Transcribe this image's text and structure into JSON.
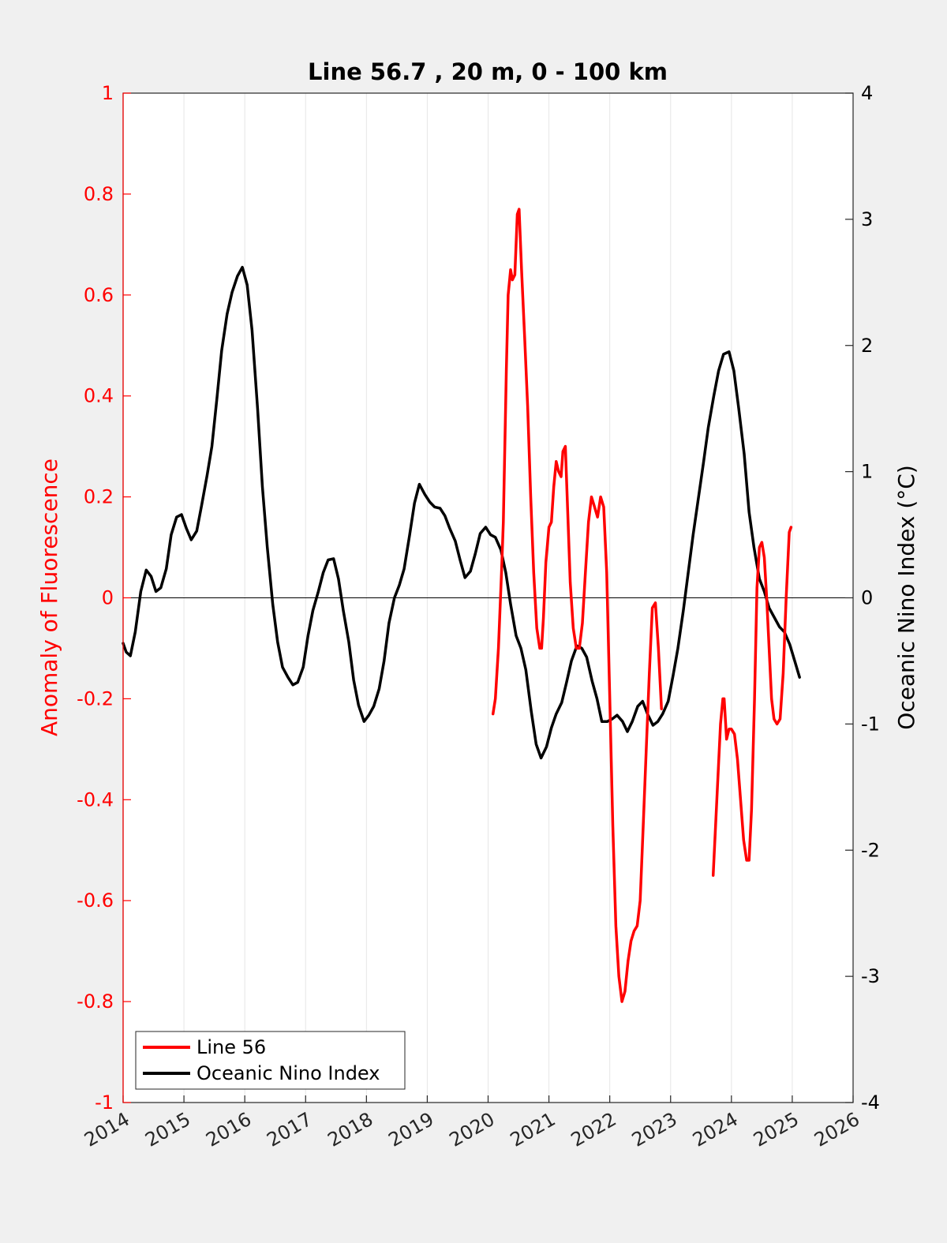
{
  "chart_data": {
    "type": "line",
    "title": "Line 56.7 , 20 m, 0 - 100 km",
    "ylabel_left": "Anomaly of Fluorescence",
    "ylabel_right": "Oceanic Nino Index (°C)",
    "xlim": [
      2014,
      2026
    ],
    "ylim_left": [
      -1,
      1
    ],
    "ylim_right": [
      -4,
      4
    ],
    "x_ticks": [
      "2014",
      "2015",
      "2016",
      "2017",
      "2018",
      "2019",
      "2020",
      "2021",
      "2022",
      "2023",
      "2024",
      "2025",
      "2026"
    ],
    "y_left_ticks": [
      "-1",
      "-0.8",
      "-0.6",
      "-0.4",
      "-0.2",
      "0",
      "0.2",
      "0.4",
      "0.6",
      "0.8",
      "1"
    ],
    "y_right_ticks": [
      "-4",
      "-3",
      "-2",
      "-1",
      "0",
      "1",
      "2",
      "3",
      "4"
    ],
    "grid": "vertical",
    "legend_position": "bottom-left",
    "colors": {
      "line56": "#ff0000",
      "oni": "#000000",
      "left_axis": "#ff0000"
    },
    "series": [
      {
        "name": "Line 56",
        "axis": "left",
        "segments": [
          [
            [
              2020.08,
              -0.23
            ],
            [
              2020.12,
              -0.2
            ],
            [
              2020.17,
              -0.1
            ],
            [
              2020.22,
              0.05
            ],
            [
              2020.25,
              0.15
            ],
            [
              2020.3,
              0.45
            ],
            [
              2020.33,
              0.6
            ],
            [
              2020.37,
              0.65
            ],
            [
              2020.4,
              0.63
            ],
            [
              2020.44,
              0.64
            ],
            [
              2020.48,
              0.76
            ],
            [
              2020.51,
              0.77
            ],
            [
              2020.55,
              0.65
            ],
            [
              2020.6,
              0.52
            ],
            [
              2020.65,
              0.38
            ],
            [
              2020.7,
              0.2
            ],
            [
              2020.75,
              0.05
            ],
            [
              2020.8,
              -0.06
            ],
            [
              2020.85,
              -0.1
            ],
            [
              2020.88,
              -0.1
            ],
            [
              2020.91,
              -0.04
            ],
            [
              2020.95,
              0.07
            ],
            [
              2021.0,
              0.14
            ],
            [
              2021.04,
              0.15
            ],
            [
              2021.08,
              0.22
            ],
            [
              2021.12,
              0.27
            ],
            [
              2021.16,
              0.25
            ],
            [
              2021.2,
              0.24
            ],
            [
              2021.23,
              0.29
            ],
            [
              2021.27,
              0.3
            ],
            [
              2021.3,
              0.2
            ],
            [
              2021.35,
              0.03
            ],
            [
              2021.4,
              -0.06
            ],
            [
              2021.45,
              -0.1
            ],
            [
              2021.5,
              -0.1
            ],
            [
              2021.55,
              -0.05
            ],
            [
              2021.6,
              0.05
            ],
            [
              2021.65,
              0.15
            ],
            [
              2021.7,
              0.2
            ],
            [
              2021.75,
              0.18
            ],
            [
              2021.8,
              0.16
            ],
            [
              2021.85,
              0.2
            ],
            [
              2021.9,
              0.18
            ],
            [
              2021.95,
              0.05
            ],
            [
              2022.0,
              -0.2
            ],
            [
              2022.05,
              -0.45
            ],
            [
              2022.1,
              -0.65
            ],
            [
              2022.15,
              -0.75
            ],
            [
              2022.2,
              -0.8
            ],
            [
              2022.25,
              -0.78
            ],
            [
              2022.3,
              -0.72
            ],
            [
              2022.35,
              -0.68
            ],
            [
              2022.4,
              -0.66
            ],
            [
              2022.45,
              -0.65
            ],
            [
              2022.5,
              -0.6
            ],
            [
              2022.55,
              -0.45
            ],
            [
              2022.6,
              -0.3
            ],
            [
              2022.65,
              -0.15
            ],
            [
              2022.7,
              -0.02
            ],
            [
              2022.75,
              -0.01
            ],
            [
              2022.8,
              -0.1
            ],
            [
              2022.85,
              -0.22
            ]
          ],
          [
            [
              2023.7,
              -0.55
            ],
            [
              2023.74,
              -0.45
            ],
            [
              2023.78,
              -0.35
            ],
            [
              2023.82,
              -0.25
            ],
            [
              2023.86,
              -0.2
            ],
            [
              2023.88,
              -0.2
            ],
            [
              2023.92,
              -0.28
            ],
            [
              2023.96,
              -0.26
            ],
            [
              2024.0,
              -0.26
            ],
            [
              2024.05,
              -0.27
            ],
            [
              2024.1,
              -0.32
            ],
            [
              2024.15,
              -0.4
            ],
            [
              2024.2,
              -0.48
            ],
            [
              2024.25,
              -0.52
            ],
            [
              2024.29,
              -0.52
            ],
            [
              2024.33,
              -0.42
            ],
            [
              2024.38,
              -0.2
            ],
            [
              2024.42,
              0.02
            ],
            [
              2024.46,
              0.1
            ],
            [
              2024.5,
              0.11
            ],
            [
              2024.54,
              0.08
            ],
            [
              2024.58,
              0.0
            ],
            [
              2024.62,
              -0.1
            ],
            [
              2024.66,
              -0.2
            ],
            [
              2024.7,
              -0.24
            ],
            [
              2024.75,
              -0.25
            ],
            [
              2024.8,
              -0.24
            ],
            [
              2024.85,
              -0.15
            ],
            [
              2024.9,
              0.0
            ],
            [
              2024.95,
              0.13
            ],
            [
              2024.98,
              0.14
            ]
          ]
        ]
      },
      {
        "name": "Oceanic Nino Index",
        "axis": "right",
        "values": [
          [
            2014.0,
            -0.36
          ],
          [
            2014.05,
            -0.43
          ],
          [
            2014.12,
            -0.46
          ],
          [
            2014.2,
            -0.27
          ],
          [
            2014.29,
            0.05
          ],
          [
            2014.38,
            0.22
          ],
          [
            2014.46,
            0.17
          ],
          [
            2014.54,
            0.05
          ],
          [
            2014.62,
            0.08
          ],
          [
            2014.71,
            0.23
          ],
          [
            2014.79,
            0.5
          ],
          [
            2014.88,
            0.64
          ],
          [
            2014.96,
            0.66
          ],
          [
            2015.04,
            0.55
          ],
          [
            2015.12,
            0.46
          ],
          [
            2015.21,
            0.53
          ],
          [
            2015.29,
            0.73
          ],
          [
            2015.38,
            0.97
          ],
          [
            2015.46,
            1.2
          ],
          [
            2015.54,
            1.57
          ],
          [
            2015.62,
            1.96
          ],
          [
            2015.71,
            2.25
          ],
          [
            2015.79,
            2.42
          ],
          [
            2015.88,
            2.55
          ],
          [
            2015.96,
            2.62
          ],
          [
            2016.04,
            2.48
          ],
          [
            2016.12,
            2.12
          ],
          [
            2016.21,
            1.5
          ],
          [
            2016.29,
            0.88
          ],
          [
            2016.37,
            0.4
          ],
          [
            2016.46,
            -0.05
          ],
          [
            2016.54,
            -0.35
          ],
          [
            2016.62,
            -0.55
          ],
          [
            2016.71,
            -0.63
          ],
          [
            2016.79,
            -0.69
          ],
          [
            2016.87,
            -0.67
          ],
          [
            2016.96,
            -0.55
          ],
          [
            2017.04,
            -0.3
          ],
          [
            2017.12,
            -0.1
          ],
          [
            2017.21,
            0.05
          ],
          [
            2017.29,
            0.2
          ],
          [
            2017.37,
            0.3
          ],
          [
            2017.46,
            0.31
          ],
          [
            2017.54,
            0.15
          ],
          [
            2017.62,
            -0.1
          ],
          [
            2017.71,
            -0.35
          ],
          [
            2017.79,
            -0.65
          ],
          [
            2017.87,
            -0.85
          ],
          [
            2017.96,
            -0.98
          ],
          [
            2018.04,
            -0.93
          ],
          [
            2018.12,
            -0.86
          ],
          [
            2018.21,
            -0.72
          ],
          [
            2018.29,
            -0.5
          ],
          [
            2018.37,
            -0.2
          ],
          [
            2018.46,
            0.0
          ],
          [
            2018.54,
            0.1
          ],
          [
            2018.62,
            0.23
          ],
          [
            2018.71,
            0.5
          ],
          [
            2018.79,
            0.75
          ],
          [
            2018.87,
            0.9
          ],
          [
            2018.96,
            0.82
          ],
          [
            2019.04,
            0.76
          ],
          [
            2019.12,
            0.72
          ],
          [
            2019.21,
            0.71
          ],
          [
            2019.29,
            0.65
          ],
          [
            2019.37,
            0.55
          ],
          [
            2019.46,
            0.45
          ],
          [
            2019.54,
            0.3
          ],
          [
            2019.62,
            0.16
          ],
          [
            2019.71,
            0.21
          ],
          [
            2019.79,
            0.35
          ],
          [
            2019.87,
            0.51
          ],
          [
            2019.96,
            0.56
          ],
          [
            2020.04,
            0.5
          ],
          [
            2020.12,
            0.48
          ],
          [
            2020.21,
            0.38
          ],
          [
            2020.29,
            0.2
          ],
          [
            2020.37,
            -0.05
          ],
          [
            2020.46,
            -0.3
          ],
          [
            2020.54,
            -0.4
          ],
          [
            2020.62,
            -0.57
          ],
          [
            2020.71,
            -0.9
          ],
          [
            2020.79,
            -1.16
          ],
          [
            2020.87,
            -1.27
          ],
          [
            2020.96,
            -1.18
          ],
          [
            2021.04,
            -1.03
          ],
          [
            2021.12,
            -0.92
          ],
          [
            2021.21,
            -0.83
          ],
          [
            2021.29,
            -0.67
          ],
          [
            2021.37,
            -0.5
          ],
          [
            2021.46,
            -0.38
          ],
          [
            2021.54,
            -0.4
          ],
          [
            2021.62,
            -0.47
          ],
          [
            2021.71,
            -0.66
          ],
          [
            2021.79,
            -0.8
          ],
          [
            2021.87,
            -0.98
          ],
          [
            2021.96,
            -0.98
          ],
          [
            2022.04,
            -0.96
          ],
          [
            2022.12,
            -0.93
          ],
          [
            2022.21,
            -0.98
          ],
          [
            2022.29,
            -1.06
          ],
          [
            2022.37,
            -0.98
          ],
          [
            2022.46,
            -0.86
          ],
          [
            2022.54,
            -0.82
          ],
          [
            2022.62,
            -0.92
          ],
          [
            2022.71,
            -1.01
          ],
          [
            2022.79,
            -0.98
          ],
          [
            2022.87,
            -0.92
          ],
          [
            2022.96,
            -0.82
          ],
          [
            2023.04,
            -0.62
          ],
          [
            2023.12,
            -0.4
          ],
          [
            2023.21,
            -0.1
          ],
          [
            2023.29,
            0.2
          ],
          [
            2023.37,
            0.5
          ],
          [
            2023.46,
            0.8
          ],
          [
            2023.54,
            1.07
          ],
          [
            2023.62,
            1.35
          ],
          [
            2023.71,
            1.6
          ],
          [
            2023.79,
            1.8
          ],
          [
            2023.87,
            1.93
          ],
          [
            2023.96,
            1.95
          ],
          [
            2024.04,
            1.8
          ],
          [
            2024.12,
            1.5
          ],
          [
            2024.21,
            1.14
          ],
          [
            2024.29,
            0.68
          ],
          [
            2024.37,
            0.4
          ],
          [
            2024.46,
            0.15
          ],
          [
            2024.54,
            0.05
          ],
          [
            2024.62,
            -0.08
          ],
          [
            2024.71,
            -0.16
          ],
          [
            2024.79,
            -0.23
          ],
          [
            2024.87,
            -0.27
          ],
          [
            2024.96,
            -0.37
          ],
          [
            2025.04,
            -0.5
          ],
          [
            2025.12,
            -0.63
          ]
        ]
      }
    ]
  }
}
